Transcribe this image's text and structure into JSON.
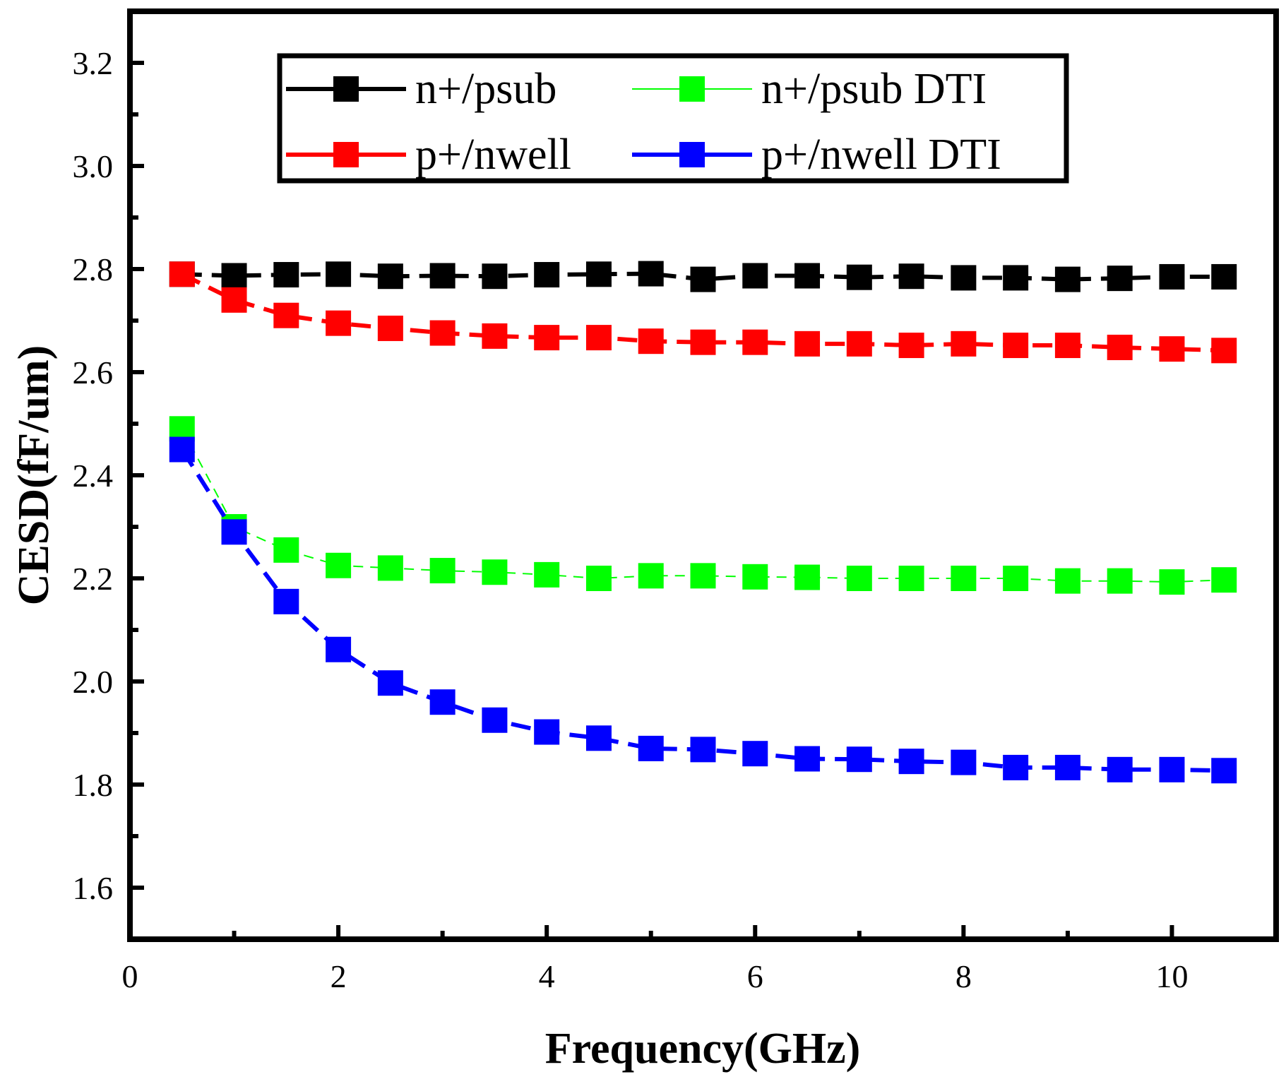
{
  "chart_data": {
    "type": "line",
    "title": "",
    "xlabel": "Frequency(GHz)",
    "ylabel": "CESD(fF/um)",
    "xlim": [
      0,
      11
    ],
    "ylim": [
      1.5,
      3.3
    ],
    "xticks": [
      0,
      2,
      4,
      6,
      8,
      10
    ],
    "xtick_labels": [
      "0",
      "2",
      "4",
      "6",
      "8",
      "10"
    ],
    "yticks": [
      1.6,
      1.8,
      2.0,
      2.2,
      2.4,
      2.6,
      2.8,
      3.0,
      3.2
    ],
    "ytick_labels": [
      "1.6",
      "1.8",
      "2.0",
      "2.2",
      "2.4",
      "2.6",
      "2.8",
      "3.0",
      "3.2"
    ],
    "grid": false,
    "legend_position": "top-center",
    "x": [
      0.5,
      1.0,
      1.5,
      2.0,
      2.5,
      3.0,
      3.5,
      4.0,
      4.5,
      5.0,
      5.5,
      6.0,
      6.5,
      7.0,
      7.5,
      8.0,
      8.5,
      9.0,
      9.5,
      10.0,
      10.5
    ],
    "series": [
      {
        "name": "n+/psub",
        "color": "#000000",
        "line": "dashed",
        "values": [
          2.79,
          2.787,
          2.789,
          2.79,
          2.786,
          2.787,
          2.786,
          2.789,
          2.79,
          2.791,
          2.78,
          2.787,
          2.787,
          2.784,
          2.786,
          2.783,
          2.783,
          2.78,
          2.782,
          2.785,
          2.785
        ]
      },
      {
        "name": "n+/psub DTI",
        "color": "#00ff00",
        "line": "thin-dashed",
        "values": [
          2.49,
          2.3,
          2.255,
          2.225,
          2.22,
          2.215,
          2.212,
          2.207,
          2.2,
          2.205,
          2.205,
          2.203,
          2.202,
          2.2,
          2.2,
          2.2,
          2.2,
          2.195,
          2.195,
          2.193,
          2.197
        ]
      },
      {
        "name": "p+/nwell",
        "color": "#ff0000",
        "line": "dashed",
        "values": [
          2.79,
          2.74,
          2.71,
          2.695,
          2.685,
          2.676,
          2.67,
          2.667,
          2.667,
          2.66,
          2.658,
          2.658,
          2.655,
          2.655,
          2.652,
          2.655,
          2.652,
          2.652,
          2.648,
          2.645,
          2.642
        ]
      },
      {
        "name": "p+/nwell DTI",
        "color": "#0000ff",
        "line": "dashed",
        "values": [
          2.45,
          2.29,
          2.155,
          2.062,
          1.997,
          1.96,
          1.925,
          1.902,
          1.89,
          1.87,
          1.868,
          1.86,
          1.85,
          1.849,
          1.845,
          1.843,
          1.833,
          1.833,
          1.829,
          1.829,
          1.827
        ]
      }
    ]
  }
}
